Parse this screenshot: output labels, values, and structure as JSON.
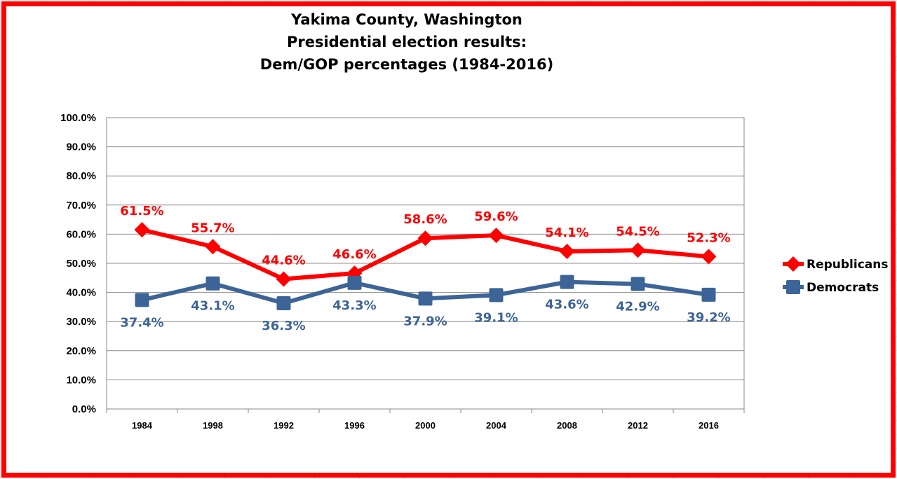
{
  "chart_data": {
    "type": "line",
    "title": [
      "Yakima County, Washington",
      "Presidential election results:",
      "Dem/GOP percentages (1984-2016)"
    ],
    "categories": [
      "1984",
      "1998",
      "1992",
      "1996",
      "2000",
      "2004",
      "2008",
      "2012",
      "2016"
    ],
    "ylim": [
      0,
      100
    ],
    "yticks": [
      0,
      10,
      20,
      30,
      40,
      50,
      60,
      70,
      80,
      90,
      100
    ],
    "ytick_labels": [
      "0.0%",
      "10.0%",
      "20.0%",
      "30.0%",
      "40.0%",
      "50.0%",
      "60.0%",
      "70.0%",
      "80.0%",
      "90.0%",
      "100.0%"
    ],
    "grid": true,
    "legend_position": "right",
    "series": [
      {
        "name": "Republicans",
        "color": "#ff0000",
        "marker": "diamond",
        "values": [
          61.5,
          55.7,
          44.6,
          46.6,
          58.6,
          59.6,
          54.1,
          54.5,
          52.3
        ],
        "labels": [
          "61.5%",
          "55.7%",
          "44.6%",
          "46.6%",
          "58.6%",
          "59.6%",
          "54.1%",
          "54.5%",
          "52.3%"
        ],
        "label_position": "above"
      },
      {
        "name": "Democrats",
        "color": "#3d6496",
        "marker": "square",
        "values": [
          37.4,
          43.1,
          36.3,
          43.3,
          37.9,
          39.1,
          43.6,
          42.9,
          39.2
        ],
        "labels": [
          "37.4%",
          "43.1%",
          "36.3%",
          "43.3%",
          "37.9%",
          "39.1%",
          "43.6%",
          "42.9%",
          "39.2%"
        ],
        "label_position": "below"
      }
    ]
  }
}
